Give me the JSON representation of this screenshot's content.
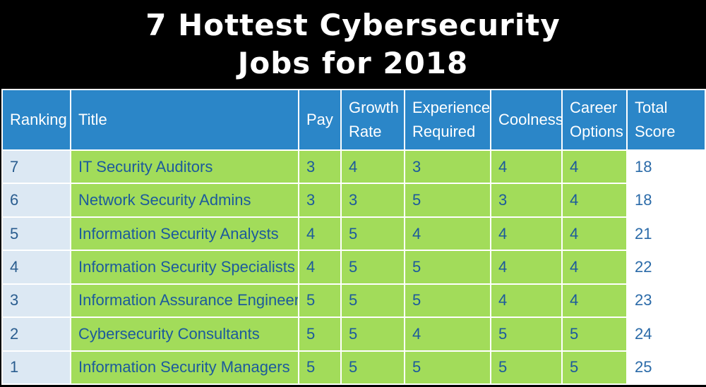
{
  "title": {
    "line1": "7 Hottest Cybersecurity",
    "line2": "Jobs for 2018"
  },
  "table": {
    "headers": {
      "ranking": "Ranking",
      "title": "Title",
      "pay": "Pay",
      "growth_rate": [
        "Growth",
        "Rate"
      ],
      "experience": [
        "Experience",
        "Required"
      ],
      "coolness": "Coolness",
      "career_options": [
        "Career",
        "Options"
      ],
      "total_score": [
        "Total",
        "Score"
      ]
    },
    "rows": [
      {
        "ranking": "7",
        "title": "IT Security Auditors",
        "pay": "3",
        "growth": "4",
        "experience": "3",
        "coolness": "4",
        "career": "4",
        "total": "18"
      },
      {
        "ranking": "6",
        "title": "Network Security Admins",
        "pay": "3",
        "growth": "3",
        "experience": "5",
        "coolness": "3",
        "career": "4",
        "total": "18"
      },
      {
        "ranking": "5",
        "title": "Information Security Analysts",
        "pay": "4",
        "growth": "5",
        "experience": "4",
        "coolness": "4",
        "career": "4",
        "total": "21"
      },
      {
        "ranking": "4",
        "title": "Information Security Specialists",
        "pay": "4",
        "growth": "5",
        "experience": "5",
        "coolness": "4",
        "career": "4",
        "total": "22"
      },
      {
        "ranking": "3",
        "title": "Information Assurance Engineers",
        "pay": "5",
        "growth": "5",
        "experience": "5",
        "coolness": "4",
        "career": "4",
        "total": "23"
      },
      {
        "ranking": "2",
        "title": "Cybersecurity Consultants",
        "pay": "5",
        "growth": "5",
        "experience": "4",
        "coolness": "5",
        "career": "5",
        "total": "24"
      },
      {
        "ranking": "1",
        "title": "Information Security Managers",
        "pay": "5",
        "growth": "5",
        "experience": "5",
        "coolness": "5",
        "career": "5",
        "total": "25"
      }
    ]
  },
  "colors": {
    "header_blue": "#2b86c8",
    "ranking_cell": "#dce8f3",
    "data_green": "#a2dc5a",
    "total_cell": "#ffffff",
    "text_blue": "#1c5a9c"
  }
}
